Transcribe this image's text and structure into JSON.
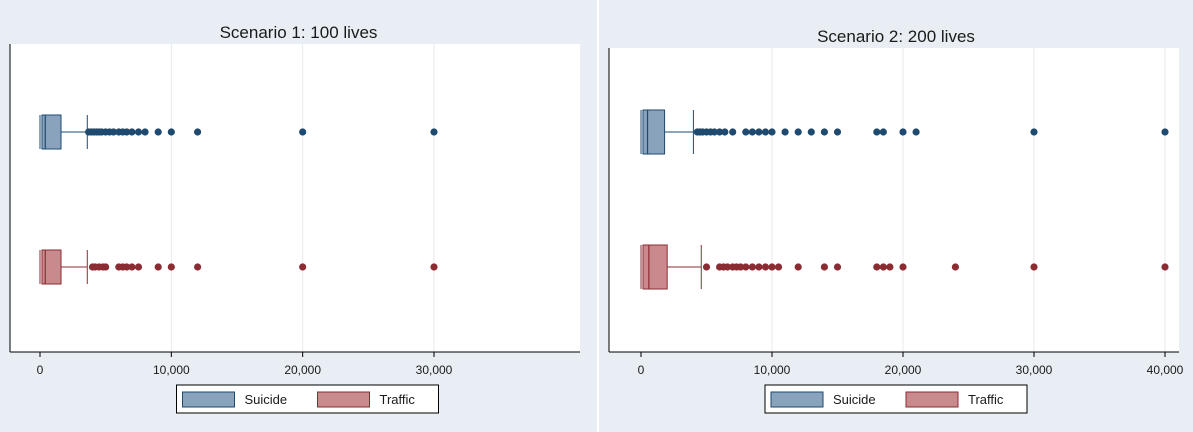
{
  "chart_data": [
    {
      "type": "boxplot",
      "title": "Scenario 1: 100 lives",
      "orientation": "horizontal",
      "xlim": [
        -2000,
        41000
      ],
      "xticks": [
        0,
        10000,
        20000,
        30000
      ],
      "xtick_labels": [
        "0",
        "10,000",
        "20,000",
        "30,000"
      ],
      "grid": true,
      "legend": "bottom",
      "series": [
        {
          "name": "Suicide",
          "color": "#8aa3bd",
          "edge": "#1e4a70",
          "min": 0,
          "q1": 150,
          "median": 400,
          "q3": 1600,
          "whisker_high": 3600,
          "outliers": [
            3700,
            3900,
            4100,
            4300,
            4500,
            4700,
            5000,
            5300,
            5600,
            6000,
            6300,
            6600,
            7000,
            7500,
            8000,
            9000,
            10000,
            12000,
            20000,
            30000
          ]
        },
        {
          "name": "Traffic",
          "color": "#c98a8e",
          "edge": "#8b2c33",
          "min": 0,
          "q1": 150,
          "median": 400,
          "q3": 1600,
          "whisker_high": 3600,
          "outliers": [
            4000,
            4200,
            4500,
            4800,
            5000,
            6000,
            6300,
            6600,
            7000,
            7500,
            9000,
            10000,
            12000,
            20000,
            30000
          ]
        }
      ]
    },
    {
      "type": "boxplot",
      "title": "Scenario 2: 200 lives",
      "orientation": "horizontal",
      "xlim": [
        -2000,
        41000
      ],
      "xticks": [
        0,
        10000,
        20000,
        30000,
        40000
      ],
      "xtick_labels": [
        "0",
        "10,000",
        "20,000",
        "30,000",
        "40,000"
      ],
      "grid": true,
      "legend": "bottom",
      "series": [
        {
          "name": "Suicide",
          "color": "#8aa3bd",
          "edge": "#1e4a70",
          "min": 0,
          "q1": 150,
          "median": 500,
          "q3": 1800,
          "whisker_high": 4000,
          "outliers": [
            4300,
            4500,
            4700,
            5000,
            5300,
            5600,
            6000,
            6400,
            7000,
            8000,
            8500,
            9000,
            9500,
            10000,
            11000,
            12000,
            13000,
            14000,
            15000,
            18000,
            18500,
            20000,
            21000,
            30000,
            40000
          ]
        },
        {
          "name": "Traffic",
          "color": "#c98a8e",
          "edge": "#8b2c33",
          "min": 0,
          "q1": 150,
          "median": 600,
          "q3": 2000,
          "whisker_high": 4600,
          "outliers": [
            5000,
            6000,
            6300,
            6600,
            7000,
            7300,
            7600,
            8000,
            8500,
            9000,
            9500,
            10000,
            10500,
            12000,
            14000,
            15000,
            18000,
            18500,
            19000,
            20000,
            24000,
            30000,
            40000
          ]
        }
      ]
    }
  ]
}
